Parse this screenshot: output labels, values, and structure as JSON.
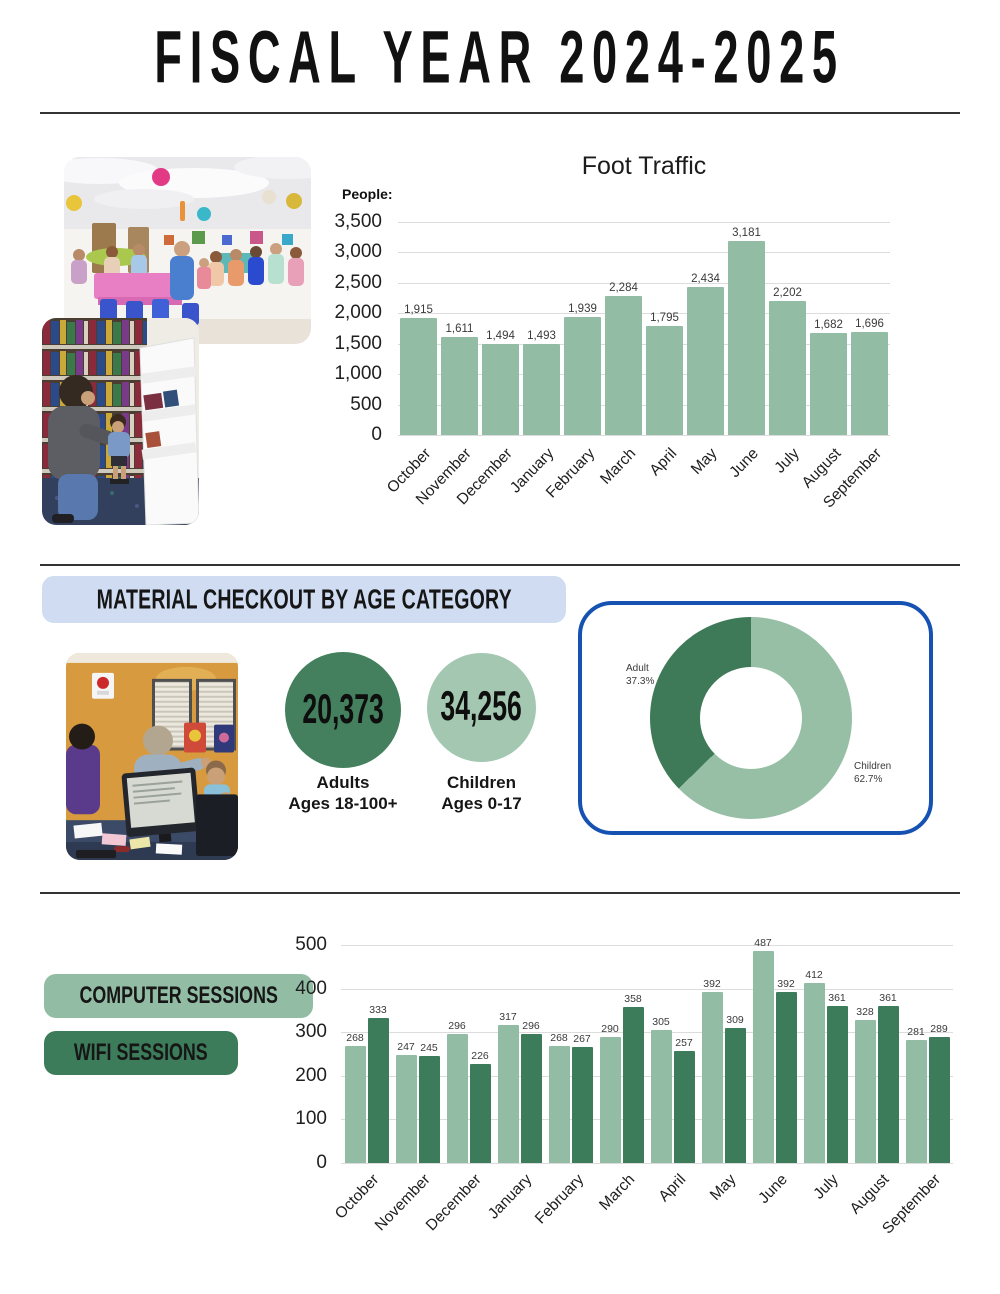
{
  "header": {
    "title": "FISCAL YEAR 2024-2025"
  },
  "colors": {
    "bar_light_green": "#92bda4",
    "bar_dark_green": "#3d7c5a",
    "circle_dark_green": "#44805e",
    "circle_light_green": "#a3c7b1",
    "header_pill_blue": "#cfdcf2",
    "donut_border_blue": "#1552b1",
    "grid_line": "#dcdcdc"
  },
  "material_checkout": {
    "heading": "MATERIAL CHECKOUT BY AGE CATEGORY",
    "adults_value": "20,373",
    "adults_label1": "Adults",
    "adults_label2": "Ages 18-100+",
    "children_value": "34,256",
    "children_label1": "Children",
    "children_label2": "Ages 0-17"
  },
  "photos": {
    "event_room": "library-program-crowd-photo",
    "bookshelf": "child-at-bookshelf-photo",
    "front_desk": "circulation-desk-photo"
  },
  "chart_data": [
    {
      "id": "foot_traffic",
      "type": "bar",
      "title": "Foot Traffic",
      "ylabel": "People:",
      "categories": [
        "October",
        "November",
        "December",
        "January",
        "February",
        "March",
        "April",
        "May",
        "June",
        "July",
        "August",
        "September"
      ],
      "values": [
        1915,
        1611,
        1494,
        1493,
        1939,
        2284,
        1795,
        2434,
        3181,
        2202,
        1682,
        1696
      ],
      "value_labels": [
        "1,915",
        "1,611",
        "1,494",
        "1,493",
        "1,939",
        "2,284",
        "1,795",
        "2,434",
        "3,181",
        "2,202",
        "1,682",
        "1,696"
      ],
      "ylim": [
        0,
        3500
      ],
      "yticks": [
        "3,500",
        "3,000",
        "2,500",
        "2,000",
        "1,500",
        "1,000",
        "500",
        "0"
      ],
      "grid": true,
      "legend_position": "none",
      "bar_color": "#92bda4"
    },
    {
      "id": "checkout_by_age_donut",
      "type": "pie",
      "donut": true,
      "slices": [
        {
          "label": "Children",
          "pct": 62.7,
          "pct_label": "62.7%",
          "color": "#97bfa6"
        },
        {
          "label": "Adult",
          "pct": 37.3,
          "pct_label": "37.3%",
          "color": "#3e7a57"
        }
      ]
    },
    {
      "id": "computer_wifi_sessions",
      "type": "bar",
      "categories": [
        "October",
        "November",
        "December",
        "January",
        "February",
        "March",
        "April",
        "May",
        "June",
        "July",
        "August",
        "September"
      ],
      "series": [
        {
          "name": "COMPUTER SESSIONS",
          "color": "#92bda4",
          "values": [
            268,
            247,
            296,
            317,
            268,
            290,
            305,
            392,
            487,
            412,
            328,
            281
          ]
        },
        {
          "name": "WIFI SESSIONS",
          "color": "#3d7c5a",
          "values": [
            333,
            245,
            226,
            296,
            267,
            358,
            257,
            309,
            392,
            361,
            361,
            289
          ]
        }
      ],
      "ylim": [
        0,
        500
      ],
      "yticks": [
        "500",
        "400",
        "300",
        "200",
        "100",
        "0"
      ],
      "grid": true,
      "legend_position": "left"
    }
  ]
}
